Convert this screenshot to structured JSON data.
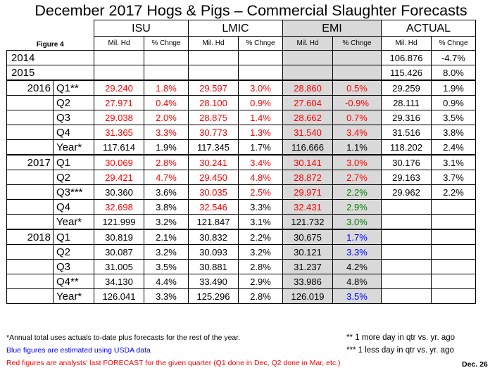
{
  "title": "December  2017 Hogs & Pigs – Commercial Slaughter Forecasts",
  "figure_label": "Figure 4",
  "groups": [
    "ISU",
    "LMIC",
    "EMI",
    "ACTUAL"
  ],
  "subheaders": [
    "Mil. Hd",
    "% Chnge",
    "Mil. Hd",
    "% Chnge",
    "Mil. Hd",
    "% Chnge",
    "Mil. Hd",
    "% Chnge"
  ],
  "colors": {
    "red": "#ff0000",
    "green": "#008000",
    "blue": "#0000ff",
    "emi_shade": "#d9d9d9"
  },
  "rows": [
    {
      "year": "2014",
      "q": "",
      "cells": [
        [
          "",
          ""
        ],
        [
          "",
          ""
        ],
        [
          "",
          ""
        ],
        [
          "",
          ""
        ],
        [
          "",
          ""
        ],
        [
          "",
          ""
        ],
        [
          "106.876",
          ""
        ],
        [
          "-4.7%",
          ""
        ]
      ]
    },
    {
      "year": "2015",
      "q": "",
      "cells": [
        [
          "",
          ""
        ],
        [
          "",
          ""
        ],
        [
          "",
          ""
        ],
        [
          "",
          ""
        ],
        [
          "",
          ""
        ],
        [
          "",
          ""
        ],
        [
          "115.426",
          ""
        ],
        [
          "8.0%",
          ""
        ]
      ]
    },
    {
      "year": "2016",
      "q": "Q1**",
      "cells": [
        [
          "29.240",
          "r"
        ],
        [
          "1.8%",
          "r"
        ],
        [
          "29.597",
          "r"
        ],
        [
          "3.0%",
          "r"
        ],
        [
          "28.860",
          "r"
        ],
        [
          "0.5%",
          "r"
        ],
        [
          "29.259",
          ""
        ],
        [
          "1.9%",
          ""
        ]
      ]
    },
    {
      "year": "",
      "q": "Q2",
      "cells": [
        [
          "27.971",
          "r"
        ],
        [
          "0.4%",
          "r"
        ],
        [
          "28.100",
          "r"
        ],
        [
          "0.9%",
          "r"
        ],
        [
          "27.604",
          "r"
        ],
        [
          "-0.9%",
          "r"
        ],
        [
          "28.111",
          ""
        ],
        [
          "0.9%",
          ""
        ]
      ]
    },
    {
      "year": "",
      "q": "Q3",
      "cells": [
        [
          "29.038",
          "r"
        ],
        [
          "2.0%",
          "r"
        ],
        [
          "28.875",
          "r"
        ],
        [
          "1.4%",
          "r"
        ],
        [
          "28.662",
          "r"
        ],
        [
          "0.7%",
          "r"
        ],
        [
          "29.316",
          ""
        ],
        [
          "3.5%",
          ""
        ]
      ]
    },
    {
      "year": "",
      "q": "Q4",
      "cells": [
        [
          "31.365",
          "r"
        ],
        [
          "3.3%",
          "r"
        ],
        [
          "30.773",
          "r"
        ],
        [
          "1.3%",
          "r"
        ],
        [
          "31.540",
          "r"
        ],
        [
          "3.4%",
          "r"
        ],
        [
          "31.516",
          ""
        ],
        [
          "3.8%",
          ""
        ]
      ]
    },
    {
      "year": "",
      "q": "Year*",
      "cells": [
        [
          "117.614",
          ""
        ],
        [
          "1.9%",
          ""
        ],
        [
          "117.345",
          ""
        ],
        [
          "1.7%",
          ""
        ],
        [
          "116.666",
          ""
        ],
        [
          "1.1%",
          ""
        ],
        [
          "118.202",
          ""
        ],
        [
          "2.4%",
          ""
        ]
      ]
    },
    {
      "year": "2017",
      "q": "Q1",
      "cells": [
        [
          "30.069",
          "r"
        ],
        [
          "2.8%",
          "r"
        ],
        [
          "30.241",
          "r"
        ],
        [
          "3.4%",
          "r"
        ],
        [
          "30.141",
          "r"
        ],
        [
          "3.0%",
          "r"
        ],
        [
          "30.176",
          ""
        ],
        [
          "3.1%",
          ""
        ]
      ]
    },
    {
      "year": "",
      "q": "Q2",
      "cells": [
        [
          "29.421",
          "r"
        ],
        [
          "4.7%",
          "r"
        ],
        [
          "29.450",
          "r"
        ],
        [
          "4.8%",
          "r"
        ],
        [
          "28.872",
          "r"
        ],
        [
          "2.7%",
          "r"
        ],
        [
          "29.163",
          ""
        ],
        [
          "3.7%",
          ""
        ]
      ]
    },
    {
      "year": "",
      "q": "Q3***",
      "cells": [
        [
          "30.360",
          ""
        ],
        [
          "3.6%",
          ""
        ],
        [
          "30.035",
          "r"
        ],
        [
          "2.5%",
          "r"
        ],
        [
          "29.971",
          "r"
        ],
        [
          "2.2%",
          "g"
        ],
        [
          "29.962",
          ""
        ],
        [
          "2.2%",
          ""
        ]
      ]
    },
    {
      "year": "",
      "q": "Q4",
      "cells": [
        [
          "32.698",
          "r"
        ],
        [
          "3.8%",
          ""
        ],
        [
          "32.546",
          "r"
        ],
        [
          "3.3%",
          ""
        ],
        [
          "32.431",
          "r"
        ],
        [
          "2.9%",
          "g"
        ],
        [
          "",
          ""
        ],
        [
          "",
          ""
        ]
      ]
    },
    {
      "year": "",
      "q": "Year*",
      "cells": [
        [
          "121.999",
          ""
        ],
        [
          "3.2%",
          ""
        ],
        [
          "121.847",
          ""
        ],
        [
          "3.1%",
          ""
        ],
        [
          "121.732",
          ""
        ],
        [
          "3.0%",
          "g"
        ],
        [
          "",
          ""
        ],
        [
          "",
          ""
        ]
      ]
    },
    {
      "year": "2018",
      "q": "Q1",
      "cells": [
        [
          "30.819",
          ""
        ],
        [
          "2.1%",
          ""
        ],
        [
          "30.832",
          ""
        ],
        [
          "2.2%",
          ""
        ],
        [
          "30.675",
          ""
        ],
        [
          "1.7%",
          "b"
        ],
        [
          "",
          ""
        ],
        [
          "",
          ""
        ]
      ]
    },
    {
      "year": "",
      "q": "Q2",
      "cells": [
        [
          "30.087",
          ""
        ],
        [
          "3.2%",
          ""
        ],
        [
          "30.093",
          ""
        ],
        [
          "3.2%",
          ""
        ],
        [
          "30.121",
          ""
        ],
        [
          "3.3%",
          "b"
        ],
        [
          "",
          ""
        ],
        [
          "",
          ""
        ]
      ]
    },
    {
      "year": "",
      "q": "Q3",
      "cells": [
        [
          "31.005",
          ""
        ],
        [
          "3.5%",
          ""
        ],
        [
          "30.881",
          ""
        ],
        [
          "2.8%",
          ""
        ],
        [
          "31.237",
          ""
        ],
        [
          "4.2%",
          ""
        ],
        [
          "",
          ""
        ],
        [
          "",
          ""
        ]
      ]
    },
    {
      "year": "",
      "q": "Q4**",
      "cells": [
        [
          "34.130",
          ""
        ],
        [
          "4.4%",
          ""
        ],
        [
          "33.490",
          ""
        ],
        [
          "2.9%",
          ""
        ],
        [
          "33.986",
          ""
        ],
        [
          "4.8%",
          ""
        ],
        [
          "",
          ""
        ],
        [
          "",
          ""
        ]
      ]
    },
    {
      "year": "",
      "q": "Year*",
      "cells": [
        [
          "126.041",
          ""
        ],
        [
          "3.3%",
          ""
        ],
        [
          "125.296",
          ""
        ],
        [
          "2.8%",
          ""
        ],
        [
          "126.019",
          ""
        ],
        [
          "3.5%",
          "b"
        ],
        [
          "",
          ""
        ],
        [
          "",
          ""
        ]
      ]
    }
  ],
  "notes": {
    "annual": "*Annual total uses actuals to-date plus forecasts for the rest of the year.",
    "more_day": "** 1 more day in qtr vs. yr. ago",
    "blue": "Blue figures are estimated using USDA data",
    "less_day": "*** 1 less day in qtr vs. yr. ago",
    "red": "Red figures are analysts' last FORECAST for the given quarter (Q1 done in Dec, Q2 done in Mar, etc.)",
    "date": "Dec. 26"
  }
}
